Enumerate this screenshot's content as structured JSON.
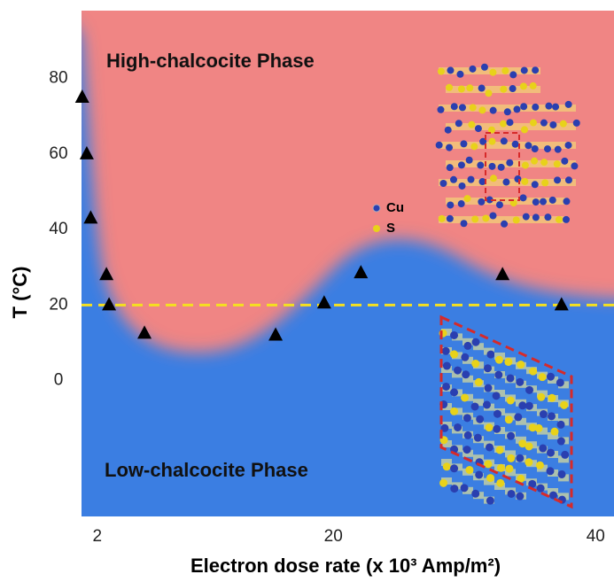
{
  "chart_data": {
    "type": "scatter",
    "x_label": "Electron dose rate (x 10³ Amp/m²)",
    "y_label": "T (°C)",
    "annotations": [
      "High-chalcocite Phase",
      "Low-chalcocite Phase",
      "Cu",
      "S"
    ],
    "x": [
      0.85,
      1.2,
      1.5,
      2.7,
      2.9,
      5.6,
      15.6,
      19.3,
      22.1,
      32.9,
      37.4
    ],
    "values": [
      75,
      60,
      43,
      28,
      20,
      12.5,
      12,
      20.5,
      28.5,
      28,
      20
    ],
    "color": "#000000",
    "xlim": [
      0.8,
      41.4
    ],
    "xticks": [
      2,
      20,
      40
    ],
    "ylim": [
      -36,
      98
    ],
    "yticks": [
      0,
      20,
      40,
      60,
      80
    ],
    "reference_line": {
      "value": 20,
      "color": "#f5e020"
    }
  }
}
